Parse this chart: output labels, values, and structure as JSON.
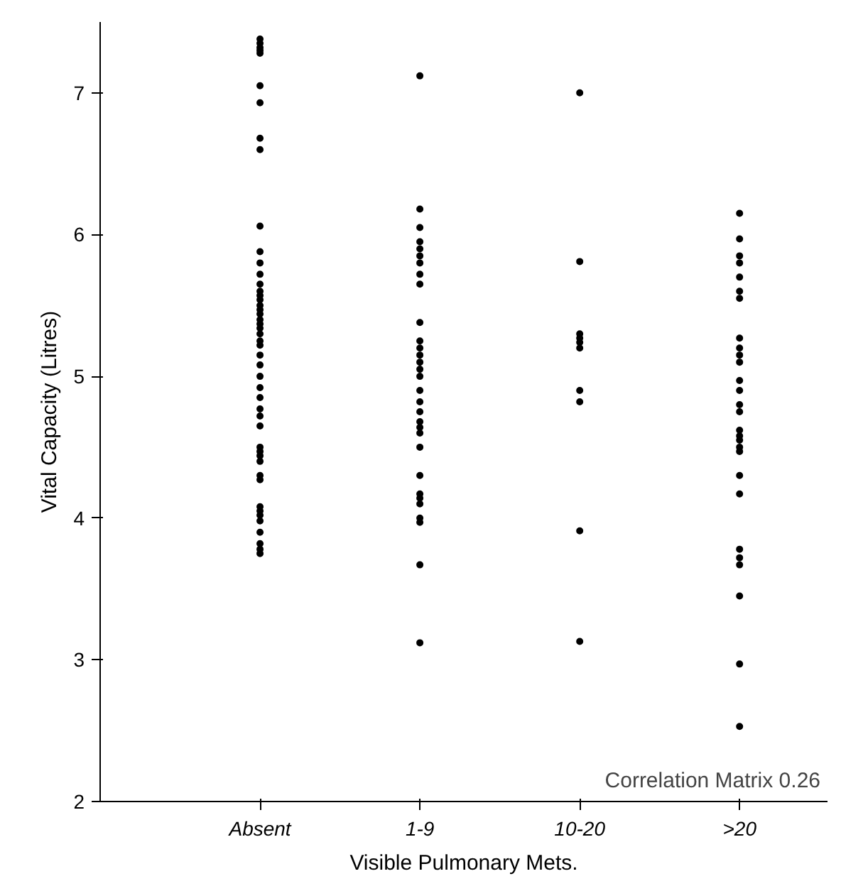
{
  "chart_data": {
    "type": "scatter",
    "xlabel": "Visible Pulmonary Mets.",
    "ylabel": "Vital Capacity (Litres)",
    "categories": [
      "Absent",
      "1-9",
      "10-20",
      ">20"
    ],
    "ylim": [
      2,
      7.5
    ],
    "yticks": [
      2,
      3,
      4,
      5,
      6,
      7
    ],
    "grid": false,
    "marker": "circle",
    "annotations": [
      "Correlation Matrix 0.26"
    ],
    "series": [
      {
        "color": "#000000",
        "x": [
          "Absent",
          "Absent",
          "Absent",
          "Absent",
          "Absent",
          "Absent",
          "Absent",
          "Absent",
          "Absent",
          "Absent",
          "Absent",
          "Absent",
          "Absent",
          "Absent",
          "Absent",
          "Absent",
          "Absent",
          "Absent",
          "Absent",
          "Absent",
          "Absent",
          "Absent",
          "Absent",
          "Absent",
          "Absent",
          "Absent",
          "Absent",
          "Absent",
          "Absent",
          "Absent",
          "Absent",
          "Absent",
          "Absent",
          "Absent",
          "Absent",
          "Absent",
          "Absent",
          "Absent",
          "Absent",
          "Absent",
          "Absent",
          "Absent",
          "Absent",
          "Absent",
          "Absent",
          "Absent",
          "Absent",
          "Absent"
        ],
        "values": [
          7.38,
          7.35,
          7.32,
          7.3,
          7.28,
          7.05,
          6.93,
          6.68,
          6.6,
          6.06,
          5.88,
          5.8,
          5.72,
          5.65,
          5.6,
          5.57,
          5.54,
          5.5,
          5.47,
          5.44,
          5.4,
          5.37,
          5.34,
          5.3,
          5.25,
          5.22,
          5.15,
          5.08,
          5.0,
          4.92,
          4.85,
          4.77,
          4.72,
          4.65,
          4.5,
          4.47,
          4.44,
          4.4,
          4.3,
          4.27,
          4.08,
          4.05,
          4.02,
          3.98,
          3.9,
          3.82,
          3.78,
          3.75
        ]
      },
      {
        "color": "#000000",
        "x": [
          "1-9",
          "1-9",
          "1-9",
          "1-9",
          "1-9",
          "1-9",
          "1-9",
          "1-9",
          "1-9",
          "1-9",
          "1-9",
          "1-9",
          "1-9",
          "1-9",
          "1-9",
          "1-9",
          "1-9",
          "1-9",
          "1-9",
          "1-9",
          "1-9",
          "1-9",
          "1-9",
          "1-9",
          "1-9",
          "1-9",
          "1-9",
          "1-9",
          "1-9",
          "1-9",
          "1-9"
        ],
        "values": [
          7.12,
          6.18,
          6.05,
          5.95,
          5.9,
          5.85,
          5.8,
          5.72,
          5.65,
          5.38,
          5.25,
          5.2,
          5.15,
          5.1,
          5.05,
          5.0,
          4.9,
          4.82,
          4.75,
          4.68,
          4.64,
          4.6,
          4.5,
          4.3,
          4.17,
          4.14,
          4.1,
          4.0,
          3.97,
          3.67,
          3.12
        ]
      },
      {
        "color": "#000000",
        "x": [
          "10-20",
          "10-20",
          "10-20",
          "10-20",
          "10-20",
          "10-20",
          "10-20",
          "10-20",
          "10-20",
          "10-20"
        ],
        "values": [
          7.0,
          5.81,
          5.3,
          5.27,
          5.24,
          5.2,
          4.9,
          4.82,
          3.91,
          3.13
        ]
      },
      {
        "color": "#000000",
        "x": [
          ">20",
          ">20",
          ">20",
          ">20",
          ">20",
          ">20",
          ">20",
          ">20",
          ">20",
          ">20",
          ">20",
          ">20",
          ">20",
          ">20",
          ">20",
          ">20",
          ">20",
          ">20",
          ">20",
          ">20",
          ">20",
          ">20",
          ">20",
          ">20",
          ">20",
          ">20",
          ">20",
          ">20"
        ],
        "values": [
          6.15,
          5.97,
          5.85,
          5.8,
          5.7,
          5.6,
          5.55,
          5.27,
          5.2,
          5.15,
          5.1,
          4.97,
          4.9,
          4.8,
          4.75,
          4.62,
          4.58,
          4.55,
          4.5,
          4.47,
          4.3,
          4.17,
          3.78,
          3.72,
          3.67,
          3.45,
          2.97,
          2.53
        ]
      }
    ]
  }
}
